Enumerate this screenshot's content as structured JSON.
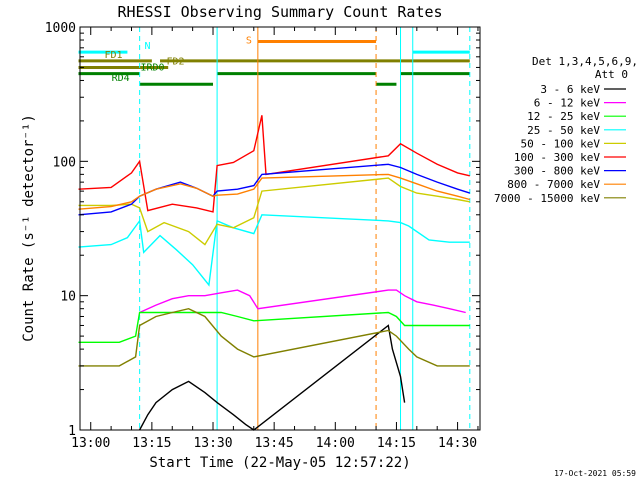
{
  "chart_data": {
    "type": "line",
    "title": "RHESSI Observing Summary Count Rates",
    "ylabel": "Count Rate (s⁻¹ detector⁻¹)",
    "xlabel": "Start Time (22-May-05 12:57:22)",
    "y_scale": "log",
    "ylim": [
      1,
      1000
    ],
    "y_ticks": [
      1,
      10,
      100,
      1000
    ],
    "xlim": [
      "12:57:22",
      "14:35:30"
    ],
    "x_ticks": [
      "13:00",
      "13:15",
      "13:30",
      "13:45",
      "14:00",
      "14:15",
      "14:30"
    ],
    "legend": {
      "placement": "right",
      "header": [
        "Det 1,3,4,5,6,9,",
        "Att 0"
      ]
    },
    "series": [
      {
        "name": "3 - 6 keV",
        "color": "#000000",
        "x": [
          "13:12",
          "13:14",
          "13:16",
          "13:20",
          "13:24",
          "13:28",
          "13:31",
          "13:35",
          "13:38",
          "13:40",
          "14:13",
          "14:14",
          "14:16",
          "14:17"
        ],
        "values": [
          1,
          1.3,
          1.6,
          2.0,
          2.3,
          1.9,
          1.6,
          1.3,
          1.1,
          1.0,
          6,
          4,
          2.5,
          1.6
        ]
      },
      {
        "name": "6 - 12 keV",
        "color": "#ff00ff",
        "x": [
          "13:12",
          "13:16",
          "13:20",
          "13:24",
          "13:28",
          "13:32",
          "13:36",
          "13:39",
          "13:41",
          "14:13",
          "14:15",
          "14:17",
          "14:20",
          "14:24",
          "14:28",
          "14:32"
        ],
        "values": [
          7.5,
          8.5,
          9.5,
          10,
          10,
          10.5,
          11,
          10,
          8,
          11,
          11,
          10,
          9,
          8.5,
          8,
          7.5
        ]
      },
      {
        "name": "12 - 25 keV",
        "color": "#00ff00",
        "x": [
          "12:57",
          "13:07",
          "13:11",
          "13:12",
          "13:20",
          "13:28",
          "13:32",
          "13:36",
          "13:40",
          "14:13",
          "14:15",
          "14:17",
          "14:20",
          "14:25",
          "14:30",
          "14:33"
        ],
        "values": [
          4.5,
          4.5,
          5,
          7.5,
          7.5,
          7.5,
          7.5,
          7,
          6.5,
          7.5,
          7,
          6,
          6,
          6,
          6,
          6
        ]
      },
      {
        "name": "25 - 50 keV",
        "color": "#00ffff",
        "x": [
          "12:57",
          "13:05",
          "13:09",
          "13:12",
          "13:13",
          "13:17",
          "13:21",
          "13:25",
          "13:29",
          "13:31",
          "13:35",
          "13:40",
          "13:42",
          "14:13",
          "14:16",
          "14:18",
          "14:23",
          "14:28",
          "14:33"
        ],
        "values": [
          23,
          24,
          27,
          36,
          21,
          28,
          22,
          17,
          12,
          36,
          32,
          29,
          40,
          36,
          35,
          33,
          26,
          25,
          25
        ]
      },
      {
        "name": "50 - 100 keV",
        "color": "#cccc00",
        "x": [
          "12:57",
          "13:05",
          "13:10",
          "13:12",
          "13:14",
          "13:18",
          "13:24",
          "13:28",
          "13:31",
          "13:35",
          "13:40",
          "13:42",
          "14:13",
          "14:16",
          "14:20",
          "14:25",
          "14:30",
          "14:33"
        ],
        "values": [
          47,
          47,
          48,
          45,
          30,
          35,
          30,
          24,
          34,
          32,
          38,
          60,
          75,
          65,
          58,
          55,
          52,
          50
        ]
      },
      {
        "name": "100 - 300 keV",
        "color": "#ff0000",
        "x": [
          "12:57",
          "13:05",
          "13:10",
          "13:12",
          "13:14",
          "13:20",
          "13:26",
          "13:30",
          "13:31",
          "13:35",
          "13:40",
          "13:42",
          "13:43",
          "14:13",
          "14:16",
          "14:20",
          "14:25",
          "14:30",
          "14:33"
        ],
        "values": [
          62,
          64,
          82,
          100,
          43,
          48,
          45,
          42,
          93,
          98,
          120,
          220,
          80,
          110,
          135,
          115,
          95,
          82,
          78
        ]
      },
      {
        "name": "300 - 800 keV",
        "color": "#0000ff",
        "x": [
          "12:57",
          "13:05",
          "13:10",
          "13:12",
          "13:16",
          "13:22",
          "13:26",
          "13:30",
          "13:31",
          "13:36",
          "13:40",
          "13:42",
          "14:13",
          "14:16",
          "14:20",
          "14:25",
          "14:30",
          "14:33"
        ],
        "values": [
          40,
          42,
          48,
          55,
          62,
          70,
          63,
          55,
          60,
          62,
          66,
          80,
          95,
          90,
          80,
          70,
          62,
          58
        ]
      },
      {
        "name": "800 - 7000 keV",
        "color": "#ff8000",
        "x": [
          "12:57",
          "13:05",
          "13:10",
          "13:12",
          "13:16",
          "13:22",
          "13:26",
          "13:30",
          "13:31",
          "13:36",
          "13:40",
          "13:42",
          "14:13",
          "14:16",
          "14:20",
          "14:25",
          "14:30",
          "14:33"
        ],
        "values": [
          44,
          46,
          50,
          55,
          62,
          68,
          63,
          55,
          56,
          57,
          62,
          75,
          80,
          75,
          68,
          60,
          55,
          52
        ]
      },
      {
        "name": "7000 - 15000 keV",
        "color": "#808000",
        "x": [
          "12:57",
          "13:07",
          "13:11",
          "13:12",
          "13:16",
          "13:20",
          "13:24",
          "13:28",
          "13:32",
          "13:36",
          "13:40",
          "14:13",
          "14:15",
          "14:18",
          "14:20",
          "14:25",
          "14:30",
          "14:33"
        ],
        "values": [
          3,
          3,
          3.5,
          6,
          7,
          7.5,
          8,
          7,
          5,
          4,
          3.5,
          5.5,
          5,
          4,
          3.5,
          3,
          3,
          3
        ]
      }
    ],
    "annotations": {
      "vertical_lines": [
        {
          "time": "12:57:22",
          "color": "#00ffff",
          "style": "solid"
        },
        {
          "time": "13:12",
          "color": "#00ffff",
          "style": "dashed"
        },
        {
          "time": "13:31",
          "color": "#00ffff",
          "style": "solid"
        },
        {
          "time": "13:41",
          "color": "#ff8000",
          "style": "solid"
        },
        {
          "time": "14:10",
          "color": "#ff8000",
          "style": "dashed"
        },
        {
          "time": "14:16",
          "color": "#00ffff",
          "style": "solid"
        },
        {
          "time": "14:19",
          "color": "#00ffff",
          "style": "solid"
        },
        {
          "time": "14:33",
          "color": "#00ffff",
          "style": "dashed"
        }
      ],
      "flag_bars": [
        {
          "label": "N",
          "color": "#00ffff",
          "y": 650,
          "segments": [
            [
              "12:57",
              "13:09"
            ],
            [
              "14:19",
              "14:33"
            ]
          ]
        },
        {
          "label": "S",
          "color": "#ff8000",
          "y": 780,
          "segments": [
            [
              "13:41",
              "14:10"
            ]
          ]
        },
        {
          "label": "FD1",
          "color": "#808000",
          "y": 560,
          "segments": [
            [
              "12:57",
              "13:15"
            ],
            [
              "13:17",
              "14:33"
            ]
          ]
        },
        {
          "label": "FD2",
          "color": "#808000",
          "y": 500,
          "segments": [
            [
              "12:57",
              "13:19"
            ]
          ]
        },
        {
          "label": "IRD0",
          "color": "#008000",
          "y": 450,
          "segments": [
            [
              "12:57",
              "13:12"
            ],
            [
              "13:31",
              "14:10"
            ],
            [
              "14:16",
              "14:33"
            ]
          ]
        },
        {
          "label": "RD4",
          "color": "#008000",
          "y": 375,
          "segments": [
            [
              "13:12",
              "13:30"
            ],
            [
              "14:10",
              "14:15"
            ]
          ]
        }
      ]
    }
  },
  "footer": {
    "timestamp": "17-Oct-2021 05:59"
  }
}
